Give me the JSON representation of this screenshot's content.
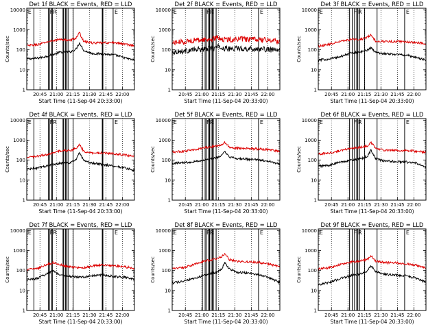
{
  "figure": {
    "background": "#ffffff",
    "colors": {
      "events": "#000000",
      "lld": "#dd0000",
      "axes": "#000000"
    }
  },
  "chart_data": [
    {
      "type": "line",
      "title": "Det 1f BLACK = Events, RED = LLD",
      "xlabel": "Start Time (11-Sep-04 20:33:00)",
      "ylabel": "Counts/sec",
      "yscale": "log",
      "ylim": [
        1,
        12000
      ],
      "yticks": [
        "1",
        "10",
        "100",
        "1000",
        "10000"
      ],
      "xticks": [
        "20:45",
        "21:00",
        "21:15",
        "21:30",
        "21:45",
        "22:00"
      ],
      "xtick_minutes": [
        12,
        27,
        42,
        57,
        72,
        87
      ],
      "xlim_minutes": [
        0,
        98
      ],
      "grid": false,
      "markers": [
        "E",
        "F",
        "R",
        "E"
      ],
      "vertical_lines_minutes": [
        6.5,
        19.8,
        20.6,
        22.6,
        23.3,
        33.0,
        33.6,
        35.2,
        36.0,
        37.6,
        42.2,
        68.7,
        69.3,
        78.6
      ],
      "series": [
        {
          "name": "Events",
          "color": "#000000",
          "anchors_minutes": [
            0,
            10,
            20,
            30,
            40,
            45,
            48,
            52,
            60,
            70,
            80,
            90,
            98
          ],
          "anchors_values": [
            35,
            38,
            50,
            75,
            80,
            110,
            230,
            90,
            65,
            62,
            55,
            38,
            30
          ]
        },
        {
          "name": "LLD",
          "color": "#dd0000",
          "anchors_minutes": [
            0,
            10,
            20,
            30,
            40,
            45,
            48,
            52,
            60,
            70,
            80,
            90,
            98
          ],
          "anchors_values": [
            160,
            180,
            260,
            330,
            300,
            400,
            700,
            260,
            220,
            220,
            230,
            190,
            160
          ]
        }
      ]
    },
    {
      "type": "line",
      "title": "Det 2f BLACK = Events, RED = LLD",
      "xlabel": "Start Time (11-Sep-04 20:33:00)",
      "ylabel": "Counts/sec",
      "yscale": "log",
      "ylim": [
        1,
        12000
      ],
      "yticks": [
        "1",
        "10",
        "100",
        "1000",
        "10000"
      ],
      "xticks": [
        "20:45",
        "21:00",
        "21:15",
        "21:30",
        "21:45",
        "22:00"
      ],
      "xtick_minutes": [
        12,
        27,
        42,
        57,
        72,
        87
      ],
      "xlim_minutes": [
        0,
        98
      ],
      "grid": false,
      "markers": [
        "E",
        "F",
        "R",
        "E"
      ],
      "vertical_lines_minutes": [
        27.5,
        30.0,
        31.0,
        33.0,
        34.0,
        35.5,
        36.5,
        37.5,
        40.0,
        78.6
      ],
      "series": [
        {
          "name": "Events",
          "color": "#000000",
          "anchors_minutes": [
            0,
            10,
            20,
            30,
            38,
            42,
            46,
            52,
            60,
            70,
            80,
            90,
            98
          ],
          "anchors_values": [
            80,
            85,
            100,
            110,
            120,
            140,
            120,
            110,
            120,
            110,
            110,
            100,
            90
          ]
        },
        {
          "name": "LLD",
          "color": "#dd0000",
          "anchors_minutes": [
            0,
            10,
            20,
            30,
            38,
            42,
            46,
            52,
            60,
            70,
            80,
            90,
            98
          ],
          "anchors_values": [
            230,
            250,
            300,
            320,
            350,
            420,
            330,
            320,
            350,
            330,
            320,
            300,
            260
          ]
        }
      ]
    },
    {
      "type": "line",
      "title": "Det 3f BLACK = Events, RED = LLD",
      "xlabel": "Start Time (11-Sep-04 20:33:00)",
      "ylabel": "Counts/sec",
      "yscale": "log",
      "ylim": [
        1,
        12000
      ],
      "yticks": [
        "1",
        "10",
        "100",
        "1000",
        "10000"
      ],
      "xticks": [
        "20:45",
        "21:00",
        "21:15",
        "21:30",
        "21:45",
        "22:00"
      ],
      "xtick_minutes": [
        12,
        27,
        42,
        57,
        72,
        87
      ],
      "xlim_minutes": [
        0,
        98
      ],
      "grid": false,
      "markers": [
        "E",
        "F",
        "R",
        "E"
      ],
      "vertical_lines_minutes": [
        28.5,
        31.0,
        33.0,
        35.0,
        36.0,
        37.6,
        42.2,
        53.5,
        78.6
      ],
      "series": [
        {
          "name": "Events",
          "color": "#000000",
          "anchors_minutes": [
            0,
            10,
            20,
            30,
            40,
            45,
            48,
            52,
            60,
            70,
            80,
            90,
            98
          ],
          "anchors_values": [
            30,
            35,
            45,
            70,
            80,
            100,
            130,
            75,
            65,
            60,
            55,
            40,
            30
          ]
        },
        {
          "name": "LLD",
          "color": "#dd0000",
          "anchors_minutes": [
            0,
            10,
            20,
            30,
            40,
            45,
            48,
            52,
            60,
            70,
            80,
            90,
            98
          ],
          "anchors_values": [
            150,
            190,
            260,
            330,
            350,
            430,
            550,
            280,
            260,
            260,
            250,
            230,
            200
          ]
        }
      ]
    },
    {
      "type": "line",
      "title": "Det 4f BLACK = Events, RED = LLD",
      "xlabel": "Start Time (11-Sep-04 20:33:00)",
      "ylabel": "Counts/sec",
      "yscale": "log",
      "ylim": [
        1,
        12000
      ],
      "yticks": [
        "1",
        "10",
        "100",
        "1000",
        "10000"
      ],
      "xticks": [
        "20:45",
        "21:00",
        "21:15",
        "21:30",
        "21:45",
        "22:00"
      ],
      "xtick_minutes": [
        12,
        27,
        42,
        57,
        72,
        87
      ],
      "xlim_minutes": [
        0,
        98
      ],
      "grid": false,
      "markers": [
        "E",
        "F",
        "R",
        "E"
      ],
      "vertical_lines_minutes": [
        6.5,
        19.8,
        20.6,
        22.6,
        23.3,
        33.0,
        33.6,
        35.2,
        36.0,
        37.6,
        42.2,
        68.7,
        69.3,
        78.6
      ],
      "series": [
        {
          "name": "Events",
          "color": "#000000",
          "anchors_minutes": [
            0,
            10,
            20,
            30,
            40,
            45,
            48,
            52,
            60,
            70,
            80,
            90,
            98
          ],
          "anchors_values": [
            35,
            40,
            55,
            70,
            75,
            110,
            230,
            90,
            70,
            60,
            50,
            40,
            30
          ]
        },
        {
          "name": "LLD",
          "color": "#dd0000",
          "anchors_minutes": [
            0,
            10,
            20,
            30,
            40,
            45,
            48,
            52,
            60,
            70,
            80,
            90,
            98
          ],
          "anchors_values": [
            130,
            160,
            200,
            290,
            300,
            390,
            600,
            270,
            230,
            230,
            210,
            180,
            150
          ]
        }
      ]
    },
    {
      "type": "line",
      "title": "Det 5f BLACK = Events, RED = LLD",
      "xlabel": "Start Time (11-Sep-04 20:33:00)",
      "ylabel": "Counts/sec",
      "yscale": "log",
      "ylim": [
        1,
        12000
      ],
      "yticks": [
        "1",
        "10",
        "100",
        "1000",
        "10000"
      ],
      "xticks": [
        "20:45",
        "21:00",
        "21:15",
        "21:30",
        "21:45",
        "22:00"
      ],
      "xtick_minutes": [
        12,
        27,
        42,
        57,
        72,
        87
      ],
      "xlim_minutes": [
        0,
        98
      ],
      "grid": false,
      "markers": [
        "E",
        "F",
        "R",
        "E"
      ],
      "vertical_lines_minutes": [
        27.5,
        30.0,
        31.0,
        33.0,
        34.0,
        35.5,
        36.5,
        37.5,
        40.0,
        78.6
      ],
      "series": [
        {
          "name": "Events",
          "color": "#000000",
          "anchors_minutes": [
            0,
            10,
            20,
            30,
            40,
            45,
            48,
            52,
            60,
            70,
            80,
            90,
            98
          ],
          "anchors_values": [
            70,
            75,
            85,
            100,
            130,
            170,
            260,
            140,
            120,
            110,
            100,
            85,
            60
          ]
        },
        {
          "name": "LLD",
          "color": "#dd0000",
          "anchors_minutes": [
            0,
            10,
            20,
            30,
            40,
            45,
            48,
            52,
            60,
            70,
            80,
            90,
            98
          ],
          "anchors_values": [
            250,
            280,
            330,
            420,
            500,
            560,
            800,
            450,
            400,
            380,
            360,
            320,
            270
          ]
        }
      ]
    },
    {
      "type": "line",
      "title": "Det 6f BLACK = Events, RED = LLD",
      "xlabel": "Start Time (11-Sep-04 20:33:00)",
      "ylabel": "Counts/sec",
      "yscale": "log",
      "ylim": [
        1,
        12000
      ],
      "yticks": [
        "1",
        "10",
        "100",
        "1000",
        "10000"
      ],
      "xticks": [
        "20:45",
        "21:00",
        "21:15",
        "21:30",
        "21:45",
        "22:00"
      ],
      "xtick_minutes": [
        12,
        27,
        42,
        57,
        72,
        87
      ],
      "xlim_minutes": [
        0,
        98
      ],
      "grid": false,
      "markers": [
        "E",
        "F",
        "R",
        "E"
      ],
      "vertical_lines_minutes": [
        28.5,
        31.0,
        33.0,
        35.0,
        36.0,
        37.6,
        42.2,
        53.5,
        78.6
      ],
      "series": [
        {
          "name": "Events",
          "color": "#000000",
          "anchors_minutes": [
            0,
            10,
            20,
            30,
            40,
            45,
            48,
            52,
            60,
            70,
            80,
            90,
            98
          ],
          "anchors_values": [
            50,
            55,
            80,
            100,
            120,
            160,
            330,
            120,
            90,
            85,
            80,
            70,
            40
          ]
        },
        {
          "name": "LLD",
          "color": "#dd0000",
          "anchors_minutes": [
            0,
            10,
            20,
            30,
            40,
            45,
            48,
            52,
            60,
            70,
            80,
            90,
            98
          ],
          "anchors_values": [
            200,
            230,
            300,
            380,
            450,
            520,
            780,
            400,
            320,
            310,
            300,
            280,
            250
          ]
        }
      ]
    },
    {
      "type": "line",
      "title": "Det 7f BLACK = Events, RED = LLD",
      "xlabel": "Start Time (11-Sep-04 20:33:00)",
      "ylabel": "Counts/sec",
      "yscale": "log",
      "ylim": [
        1,
        12000
      ],
      "yticks": [
        "1",
        "10",
        "100",
        "1000",
        "10000"
      ],
      "xticks": [
        "20:45",
        "21:00",
        "21:15",
        "21:30",
        "21:45",
        "22:00"
      ],
      "xtick_minutes": [
        12,
        27,
        42,
        57,
        72,
        87
      ],
      "xlim_minutes": [
        0,
        98
      ],
      "grid": false,
      "markers": [
        "E",
        "F",
        "R",
        "E"
      ],
      "vertical_lines_minutes": [
        6.5,
        19.8,
        20.6,
        22.6,
        23.3,
        33.0,
        33.6,
        35.2,
        36.0,
        37.6,
        42.2,
        68.7,
        69.3,
        78.6
      ],
      "series": [
        {
          "name": "Events",
          "color": "#000000",
          "anchors_minutes": [
            0,
            10,
            18,
            24,
            30,
            40,
            50,
            60,
            70,
            80,
            90,
            98
          ],
          "anchors_values": [
            35,
            40,
            70,
            100,
            60,
            50,
            45,
            55,
            60,
            50,
            45,
            35
          ]
        },
        {
          "name": "LLD",
          "color": "#dd0000",
          "anchors_minutes": [
            0,
            10,
            18,
            24,
            30,
            40,
            50,
            60,
            70,
            80,
            90,
            98
          ],
          "anchors_values": [
            110,
            130,
            200,
            250,
            200,
            150,
            130,
            170,
            190,
            170,
            150,
            130
          ]
        }
      ]
    },
    {
      "type": "line",
      "title": "Det 8f BLACK = Events, RED = LLD",
      "xlabel": "Start Time (11-Sep-04 20:33:00)",
      "ylabel": "Counts/sec",
      "yscale": "log",
      "ylim": [
        1,
        12000
      ],
      "yticks": [
        "1",
        "10",
        "100",
        "1000",
        "10000"
      ],
      "xticks": [
        "20:45",
        "21:00",
        "21:15",
        "21:30",
        "21:45",
        "22:00"
      ],
      "xtick_minutes": [
        12,
        27,
        42,
        57,
        72,
        87
      ],
      "xlim_minutes": [
        0,
        98
      ],
      "grid": false,
      "markers": [
        "E",
        "F",
        "R",
        "E"
      ],
      "vertical_lines_minutes": [
        27.5,
        30.0,
        31.0,
        33.0,
        34.0,
        35.5,
        36.5,
        37.5,
        40.0,
        78.6
      ],
      "series": [
        {
          "name": "Events",
          "color": "#000000",
          "anchors_minutes": [
            0,
            10,
            20,
            30,
            40,
            45,
            48,
            52,
            60,
            70,
            80,
            90,
            98
          ],
          "anchors_values": [
            25,
            28,
            40,
            60,
            80,
            120,
            250,
            120,
            80,
            75,
            60,
            40,
            25
          ]
        },
        {
          "name": "LLD",
          "color": "#dd0000",
          "anchors_minutes": [
            0,
            10,
            20,
            30,
            40,
            45,
            48,
            52,
            60,
            70,
            80,
            90,
            98
          ],
          "anchors_values": [
            130,
            140,
            200,
            300,
            380,
            480,
            700,
            350,
            280,
            270,
            250,
            200,
            150
          ]
        }
      ]
    },
    {
      "type": "line",
      "title": "Det 9f BLACK = Events, RED = LLD",
      "xlabel": "Start Time (11-Sep-04 20:33:00)",
      "ylabel": "Counts/sec",
      "yscale": "log",
      "ylim": [
        1,
        12000
      ],
      "yticks": [
        "1",
        "10",
        "100",
        "1000",
        "10000"
      ],
      "xticks": [
        "20:45",
        "21:00",
        "21:15",
        "21:30",
        "21:45",
        "22:00"
      ],
      "xtick_minutes": [
        12,
        27,
        42,
        57,
        72,
        87
      ],
      "xlim_minutes": [
        0,
        98
      ],
      "grid": false,
      "markers": [
        "E",
        "F",
        "R",
        "E"
      ],
      "vertical_lines_minutes": [
        28.5,
        31.0,
        33.0,
        35.0,
        36.0,
        37.6,
        42.2,
        53.5,
        78.6
      ],
      "series": [
        {
          "name": "Events",
          "color": "#000000",
          "anchors_minutes": [
            0,
            10,
            20,
            30,
            40,
            45,
            48,
            52,
            60,
            70,
            80,
            90,
            98
          ],
          "anchors_values": [
            20,
            25,
            40,
            55,
            70,
            100,
            170,
            90,
            65,
            60,
            55,
            40,
            25
          ]
        },
        {
          "name": "LLD",
          "color": "#dd0000",
          "anchors_minutes": [
            0,
            10,
            20,
            30,
            40,
            45,
            48,
            52,
            60,
            70,
            80,
            90,
            98
          ],
          "anchors_values": [
            120,
            140,
            200,
            260,
            310,
            380,
            550,
            300,
            250,
            240,
            220,
            180,
            130
          ]
        }
      ]
    }
  ]
}
